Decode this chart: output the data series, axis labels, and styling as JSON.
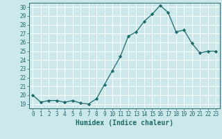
{
  "x": [
    0,
    1,
    2,
    3,
    4,
    5,
    6,
    7,
    8,
    9,
    10,
    11,
    12,
    13,
    14,
    15,
    16,
    17,
    18,
    19,
    20,
    21,
    22,
    23
  ],
  "y": [
    20.0,
    19.2,
    19.4,
    19.4,
    19.2,
    19.4,
    19.1,
    19.0,
    19.6,
    21.2,
    22.8,
    24.4,
    26.7,
    27.2,
    28.4,
    29.2,
    30.2,
    29.4,
    27.2,
    27.4,
    25.9,
    24.8,
    25.0,
    25.0
  ],
  "line_color": "#1a6b6b",
  "marker": "D",
  "marker_size": 2.2,
  "bg_color": "#cde8ea",
  "grid_color": "#ffffff",
  "xlabel": "Humidex (Indice chaleur)",
  "ylim_min": 18.5,
  "ylim_max": 30.5,
  "xlim_min": -0.5,
  "xlim_max": 23.5,
  "yticks": [
    19,
    20,
    21,
    22,
    23,
    24,
    25,
    26,
    27,
    28,
    29,
    30
  ],
  "xticks": [
    0,
    1,
    2,
    3,
    4,
    5,
    6,
    7,
    8,
    9,
    10,
    11,
    12,
    13,
    14,
    15,
    16,
    17,
    18,
    19,
    20,
    21,
    22,
    23
  ],
  "tick_color": "#1a6b6b",
  "axis_color": "#1a6b6b",
  "label_fontsize": 5.5,
  "xlabel_fontsize": 7.0
}
